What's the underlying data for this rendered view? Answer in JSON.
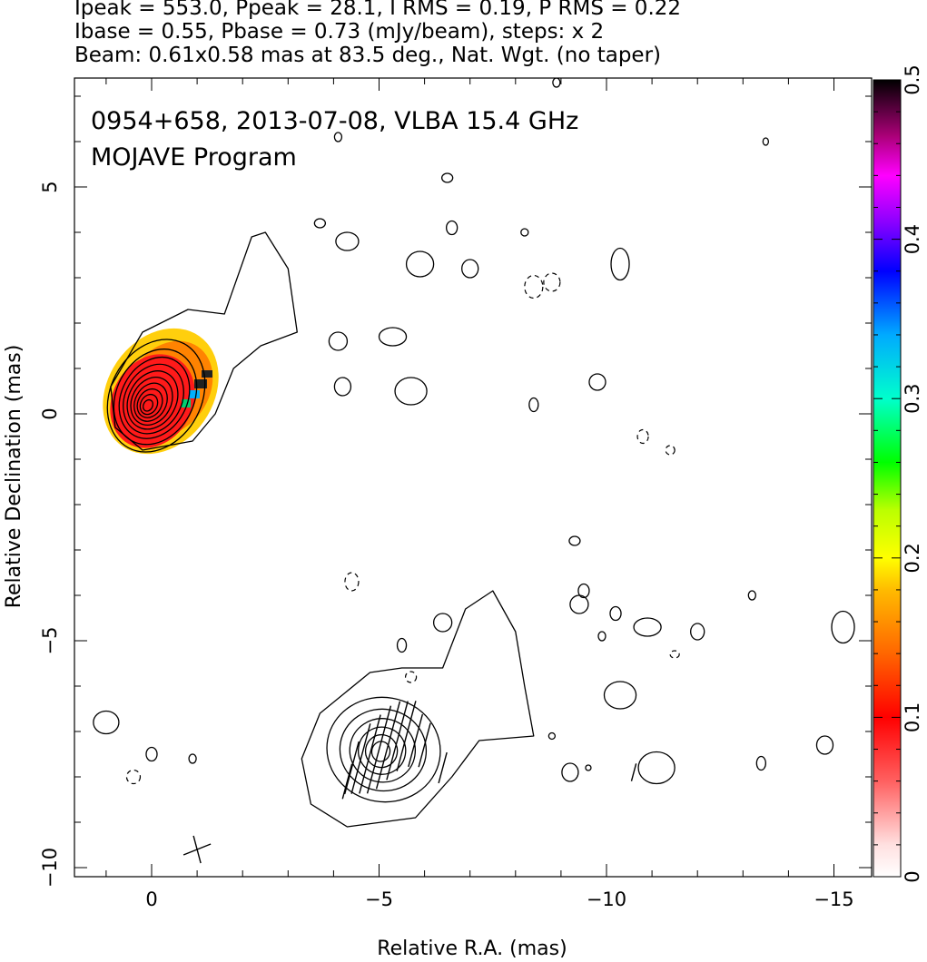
{
  "header": {
    "line1": "Ipeak = 553.0, Ppeak = 28.1, I RMS = 0.19, P RMS = 0.22",
    "line2": "Ibase = 0.55, Pbase = 0.73 (mJy/beam), steps: x 2",
    "line3": "Beam: 0.61x0.58 mas at 83.5 deg., Nat. Wgt. (no taper)"
  },
  "chart_data": {
    "type": "heatmap",
    "title": "0954+658, 2013-07-08, VLBA 15.4 GHz",
    "subtitle": "MOJAVE Program",
    "xlabel": "Relative R.A. (mas)",
    "ylabel": "Relative Declination (mas)",
    "xlim": [
      1.7,
      -16.0
    ],
    "ylim": [
      -10.2,
      7.4
    ],
    "x_ticks": [
      0,
      -5,
      -10,
      -15
    ],
    "x_tick_labels": [
      "0",
      "−5",
      "−10",
      "−15"
    ],
    "y_ticks": [
      -10,
      -5,
      0,
      5
    ],
    "y_tick_labels": [
      "−10",
      "−5",
      "0",
      "5"
    ],
    "colorbar": {
      "range": [
        0,
        0.5
      ],
      "ticks": [
        0,
        0.1,
        0.2,
        0.3,
        0.4,
        0.5
      ],
      "tick_labels": [
        "0",
        "0.1",
        "0.2",
        "0.3",
        "0.4",
        "0.5"
      ]
    },
    "sources": [
      {
        "name": "core",
        "center": [
          -0.1,
          0.4
        ],
        "contour_radii_mas": [
          [
            1.0,
            1.3
          ],
          [
            0.85,
            1.1
          ],
          [
            0.72,
            0.94
          ],
          [
            0.62,
            0.8
          ],
          [
            0.52,
            0.67
          ],
          [
            0.43,
            0.55
          ],
          [
            0.34,
            0.44
          ],
          [
            0.26,
            0.33
          ],
          [
            0.18,
            0.23
          ],
          [
            0.1,
            0.13
          ]
        ],
        "polarization_fraction": 0.1
      },
      {
        "name": "lower-component",
        "center": [
          -5.1,
          -7.4
        ],
        "contour_radii_mas": [
          [
            1.25,
            1.15
          ],
          [
            0.95,
            0.9
          ],
          [
            0.72,
            0.7
          ],
          [
            0.52,
            0.52
          ],
          [
            0.35,
            0.36
          ],
          [
            0.2,
            0.22
          ]
        ]
      }
    ],
    "outer_contours": [
      {
        "name": "jet-envelope",
        "points": [
          [
            0.8,
            -0.3
          ],
          [
            0.2,
            -0.8
          ],
          [
            -0.9,
            -0.6
          ],
          [
            -1.4,
            0.0
          ],
          [
            -1.8,
            1.0
          ],
          [
            -2.4,
            1.5
          ],
          [
            -3.2,
            1.8
          ],
          [
            -3.0,
            3.2
          ],
          [
            -2.5,
            4.0
          ],
          [
            -2.2,
            3.9
          ],
          [
            -1.6,
            2.2
          ],
          [
            -0.8,
            2.3
          ],
          [
            0.2,
            1.8
          ],
          [
            0.9,
            0.6
          ]
        ]
      },
      {
        "name": "lower-envelope",
        "points": [
          [
            -3.5,
            -8.6
          ],
          [
            -4.3,
            -9.1
          ],
          [
            -5.8,
            -8.9
          ],
          [
            -6.6,
            -8.0
          ],
          [
            -7.2,
            -7.2
          ],
          [
            -8.4,
            -7.1
          ],
          [
            -8.2,
            -6.0
          ],
          [
            -8.0,
            -4.8
          ],
          [
            -7.5,
            -3.9
          ],
          [
            -6.9,
            -4.3
          ],
          [
            -6.4,
            -5.6
          ],
          [
            -5.5,
            -5.6
          ],
          [
            -4.8,
            -5.7
          ],
          [
            -3.7,
            -6.6
          ],
          [
            -3.3,
            -7.6
          ]
        ]
      }
    ],
    "islands": [
      [
        -4.3,
        3.8,
        0.25,
        0.2
      ],
      [
        -5.9,
        3.3,
        0.3,
        0.28
      ],
      [
        -7.0,
        3.2,
        0.18,
        0.2
      ],
      [
        -10.3,
        3.3,
        0.2,
        0.35
      ],
      [
        -4.1,
        1.6,
        0.2,
        0.2
      ],
      [
        -5.3,
        1.7,
        0.3,
        0.2
      ],
      [
        -4.2,
        0.6,
        0.18,
        0.2
      ],
      [
        -5.7,
        0.5,
        0.35,
        0.3
      ],
      [
        -9.8,
        0.7,
        0.18,
        0.18
      ],
      [
        -8.4,
        0.2,
        0.1,
        0.15
      ],
      [
        -6.5,
        5.2,
        0.12,
        0.1
      ],
      [
        -6.6,
        4.1,
        0.12,
        0.15
      ],
      [
        -8.2,
        4.0,
        0.08,
        0.08
      ],
      [
        -3.7,
        4.2,
        0.12,
        0.1
      ],
      [
        -9.3,
        -2.8,
        0.12,
        0.1
      ],
      [
        -9.5,
        -3.9,
        0.12,
        0.15
      ],
      [
        -6.4,
        -4.6,
        0.2,
        0.2
      ],
      [
        -9.4,
        -4.2,
        0.2,
        0.2
      ],
      [
        -10.2,
        -4.4,
        0.12,
        0.15
      ],
      [
        -10.9,
        -4.7,
        0.3,
        0.2
      ],
      [
        -12.0,
        -4.8,
        0.15,
        0.18
      ],
      [
        -15.2,
        -4.7,
        0.25,
        0.35
      ],
      [
        -10.3,
        -6.2,
        0.35,
        0.3
      ],
      [
        -5.5,
        -5.1,
        0.1,
        0.15
      ],
      [
        -9.9,
        -4.9,
        0.08,
        0.1
      ],
      [
        -9.2,
        -7.9,
        0.18,
        0.2
      ],
      [
        -11.1,
        -7.8,
        0.4,
        0.35
      ],
      [
        -13.4,
        -7.7,
        0.1,
        0.15
      ],
      [
        -14.8,
        -7.3,
        0.18,
        0.2
      ],
      [
        1.0,
        -6.8,
        0.28,
        0.25
      ],
      [
        0.0,
        -7.5,
        0.12,
        0.15
      ],
      [
        -0.9,
        -7.6,
        0.08,
        0.1
      ],
      [
        -13.2,
        -4.0,
        0.08,
        0.1
      ],
      [
        -8.8,
        -7.1,
        0.07,
        0.07
      ],
      [
        -9.6,
        -7.8,
        0.06,
        0.06
      ],
      [
        -4.1,
        6.1,
        0.08,
        0.1
      ],
      [
        -8.9,
        7.3,
        0.08,
        0.1
      ],
      [
        -13.5,
        6.0,
        0.06,
        0.08
      ]
    ],
    "dashed_islands": [
      [
        -8.4,
        2.8,
        0.2,
        0.25
      ],
      [
        -8.8,
        2.9,
        0.18,
        0.2
      ],
      [
        -10.8,
        -0.5,
        0.12,
        0.15
      ],
      [
        -11.4,
        -0.8,
        0.1,
        0.1
      ],
      [
        -4.4,
        -3.7,
        0.15,
        0.2
      ],
      [
        0.4,
        -8.0,
        0.15,
        0.15
      ],
      [
        -11.5,
        -5.3,
        0.1,
        0.08
      ],
      [
        -5.7,
        -5.8,
        0.12,
        0.12
      ]
    ],
    "pol_vectors_lower": [
      [
        -4.4,
        -7.8,
        1.2
      ],
      [
        -4.6,
        -7.6,
        1.6
      ],
      [
        -4.8,
        -7.5,
        1.8
      ],
      [
        -5.0,
        -7.4,
        2.0
      ],
      [
        -5.2,
        -7.3,
        2.0
      ],
      [
        -5.4,
        -7.2,
        1.8
      ],
      [
        -5.6,
        -7.1,
        1.6
      ],
      [
        -5.8,
        -7.2,
        1.2
      ],
      [
        -6.0,
        -7.3,
        1.0
      ],
      [
        -4.3,
        -8.1,
        0.8
      ],
      [
        -6.4,
        -7.8,
        0.7
      ],
      [
        -10.6,
        -7.9,
        0.4
      ]
    ],
    "cross": [
      -1.0,
      -9.6,
      0.6
    ]
  }
}
